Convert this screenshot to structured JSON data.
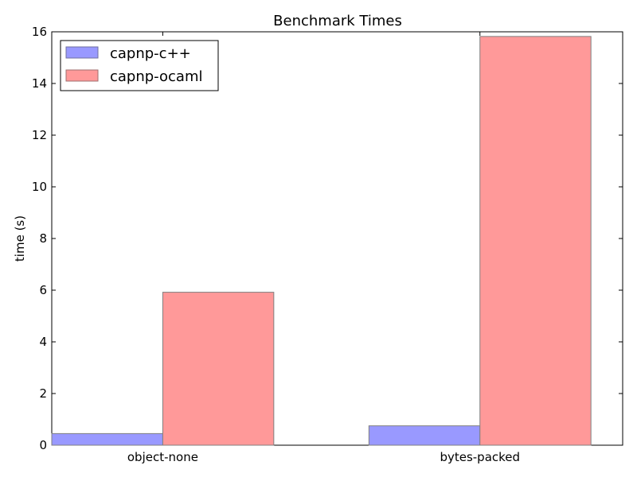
{
  "chart_data": {
    "type": "bar",
    "title": "Benchmark Times",
    "xlabel": "",
    "ylabel": "time (s)",
    "categories": [
      "object-none",
      "bytes-packed"
    ],
    "series": [
      {
        "name": "capnp-c++",
        "values": [
          0.45,
          0.75
        ],
        "color": "#9999ff"
      },
      {
        "name": "capnp-ocaml",
        "values": [
          5.92,
          15.82
        ],
        "color": "#ff9999"
      }
    ],
    "ylim": [
      0,
      16
    ],
    "yticks": [
      0,
      2,
      4,
      6,
      8,
      10,
      12,
      14,
      16
    ],
    "grid": false,
    "legend_position": "top-left"
  }
}
